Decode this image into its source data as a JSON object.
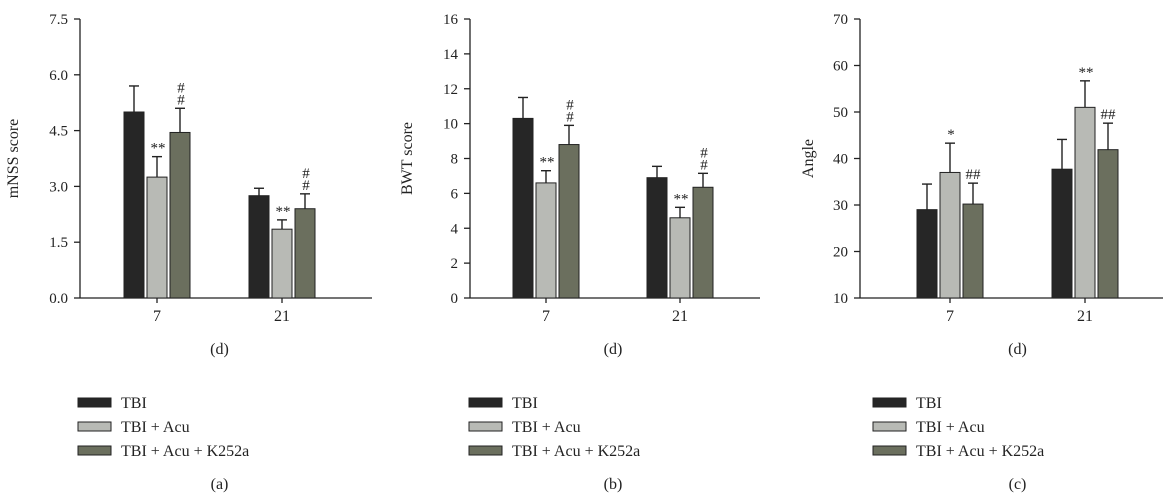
{
  "colors": {
    "TBI": "#262626",
    "TBI + Acu": "#b8bab5",
    "TBI + Acu + K252a": "#6b6f5e"
  },
  "chart_data": [
    {
      "type": "bar",
      "panel_label": "(a)",
      "xlabel": "(d)",
      "ylabel": "mNSS score",
      "categories": [
        "7",
        "21"
      ],
      "ylim": [
        0,
        7.5
      ],
      "yticks": [
        "0.0",
        "1.5",
        "3.0",
        "4.5",
        "6.0",
        "7.5"
      ],
      "series": [
        {
          "name": "TBI",
          "values": [
            5.0,
            2.75
          ],
          "errors": [
            0.7,
            0.2
          ],
          "marks": [
            "",
            ""
          ]
        },
        {
          "name": "TBI + Acu",
          "values": [
            3.25,
            1.85
          ],
          "errors": [
            0.55,
            0.25
          ],
          "marks": [
            "**",
            "**"
          ]
        },
        {
          "name": "TBI + Acu + K252a",
          "values": [
            4.45,
            2.4
          ],
          "errors": [
            0.65,
            0.4
          ],
          "marks": [
            "#\n#",
            "#\n#"
          ]
        }
      ]
    },
    {
      "type": "bar",
      "panel_label": "(b)",
      "xlabel": "(d)",
      "ylabel": "BWT score",
      "categories": [
        "7",
        "21"
      ],
      "ylim": [
        0,
        16
      ],
      "yticks": [
        "0",
        "2",
        "4",
        "6",
        "8",
        "10",
        "12",
        "14",
        "16"
      ],
      "series": [
        {
          "name": "TBI",
          "values": [
            10.3,
            6.9
          ],
          "errors": [
            1.2,
            0.65
          ],
          "marks": [
            "",
            ""
          ]
        },
        {
          "name": "TBI + Acu",
          "values": [
            6.6,
            4.6
          ],
          "errors": [
            0.7,
            0.6
          ],
          "marks": [
            "**",
            "**"
          ]
        },
        {
          "name": "TBI + Acu + K252a",
          "values": [
            8.8,
            6.35
          ],
          "errors": [
            1.1,
            0.8
          ],
          "marks": [
            "#\n#",
            "#\n#"
          ]
        }
      ]
    },
    {
      "type": "bar",
      "panel_label": "(c)",
      "xlabel": "(d)",
      "ylabel": "Angle",
      "categories": [
        "7",
        "21"
      ],
      "ylim": [
        10,
        70
      ],
      "yticks": [
        "10",
        "20",
        "30",
        "40",
        "50",
        "60",
        "70"
      ],
      "series": [
        {
          "name": "TBI",
          "values": [
            29,
            37.7
          ],
          "errors": [
            5.5,
            6.4
          ],
          "marks": [
            "",
            ""
          ]
        },
        {
          "name": "TBI + Acu",
          "values": [
            37,
            51
          ],
          "errors": [
            6.3,
            5.7
          ],
          "marks": [
            "*",
            "**"
          ]
        },
        {
          "name": "TBI + Acu + K252a",
          "values": [
            30.2,
            41.9
          ],
          "errors": [
            4.5,
            5.7
          ],
          "marks": [
            "##",
            "##"
          ]
        }
      ]
    }
  ]
}
